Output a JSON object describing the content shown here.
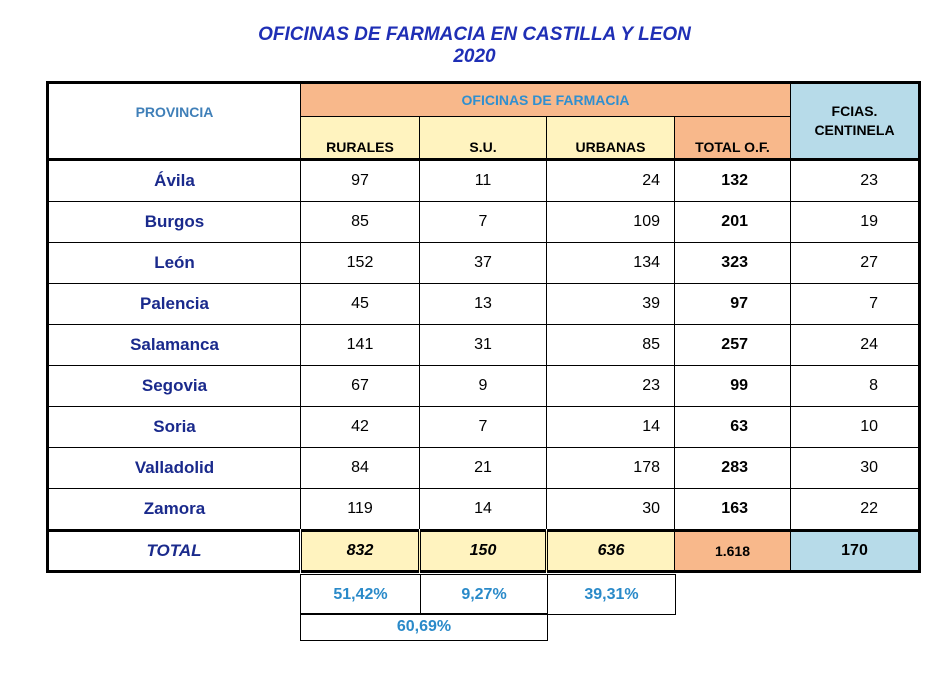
{
  "title": {
    "line1": "OFICINAS DE FARMACIA EN CASTILLA Y LEON",
    "line2": "2020"
  },
  "header": {
    "provincia": "PROVINCIA",
    "group": "OFICINAS DE FARMACIA",
    "centinela_line1": "FCIAS.",
    "centinela_line2": "CENTINELA",
    "rurales": "RURALES",
    "su": "S.U.",
    "urbanas": "URBANAS",
    "total_of": "TOTAL O.F."
  },
  "rows": [
    {
      "provincia": "Ávila",
      "rurales": "97",
      "su": "11",
      "urbanas": "24",
      "total": "132",
      "centinela": "23"
    },
    {
      "provincia": "Burgos",
      "rurales": "85",
      "su": "7",
      "urbanas": "109",
      "total": "201",
      "centinela": "19"
    },
    {
      "provincia": "León",
      "rurales": "152",
      "su": "37",
      "urbanas": "134",
      "total": "323",
      "centinela": "27"
    },
    {
      "provincia": "Palencia",
      "rurales": "45",
      "su": "13",
      "urbanas": "39",
      "total": "97",
      "centinela": "7"
    },
    {
      "provincia": "Salamanca",
      "rurales": "141",
      "su": "31",
      "urbanas": "85",
      "total": "257",
      "centinela": "24"
    },
    {
      "provincia": "Segovia",
      "rurales": "67",
      "su": "9",
      "urbanas": "23",
      "total": "99",
      "centinela": "8"
    },
    {
      "provincia": "Soria",
      "rurales": "42",
      "su": "7",
      "urbanas": "14",
      "total": "63",
      "centinela": "10"
    },
    {
      "provincia": "Valladolid",
      "rurales": "84",
      "su": "21",
      "urbanas": "178",
      "total": "283",
      "centinela": "30"
    },
    {
      "provincia": "Zamora",
      "rurales": "119",
      "su": "14",
      "urbanas": "30",
      "total": "163",
      "centinela": "22"
    }
  ],
  "total": {
    "label": "TOTAL",
    "rurales": "832",
    "su": "150",
    "urbanas": "636",
    "total": "1.618",
    "centinela": "170"
  },
  "percentages": {
    "rurales": "51,42%",
    "su": "9,27%",
    "urbanas": "39,31%",
    "rurales_su": "60,69%"
  }
}
